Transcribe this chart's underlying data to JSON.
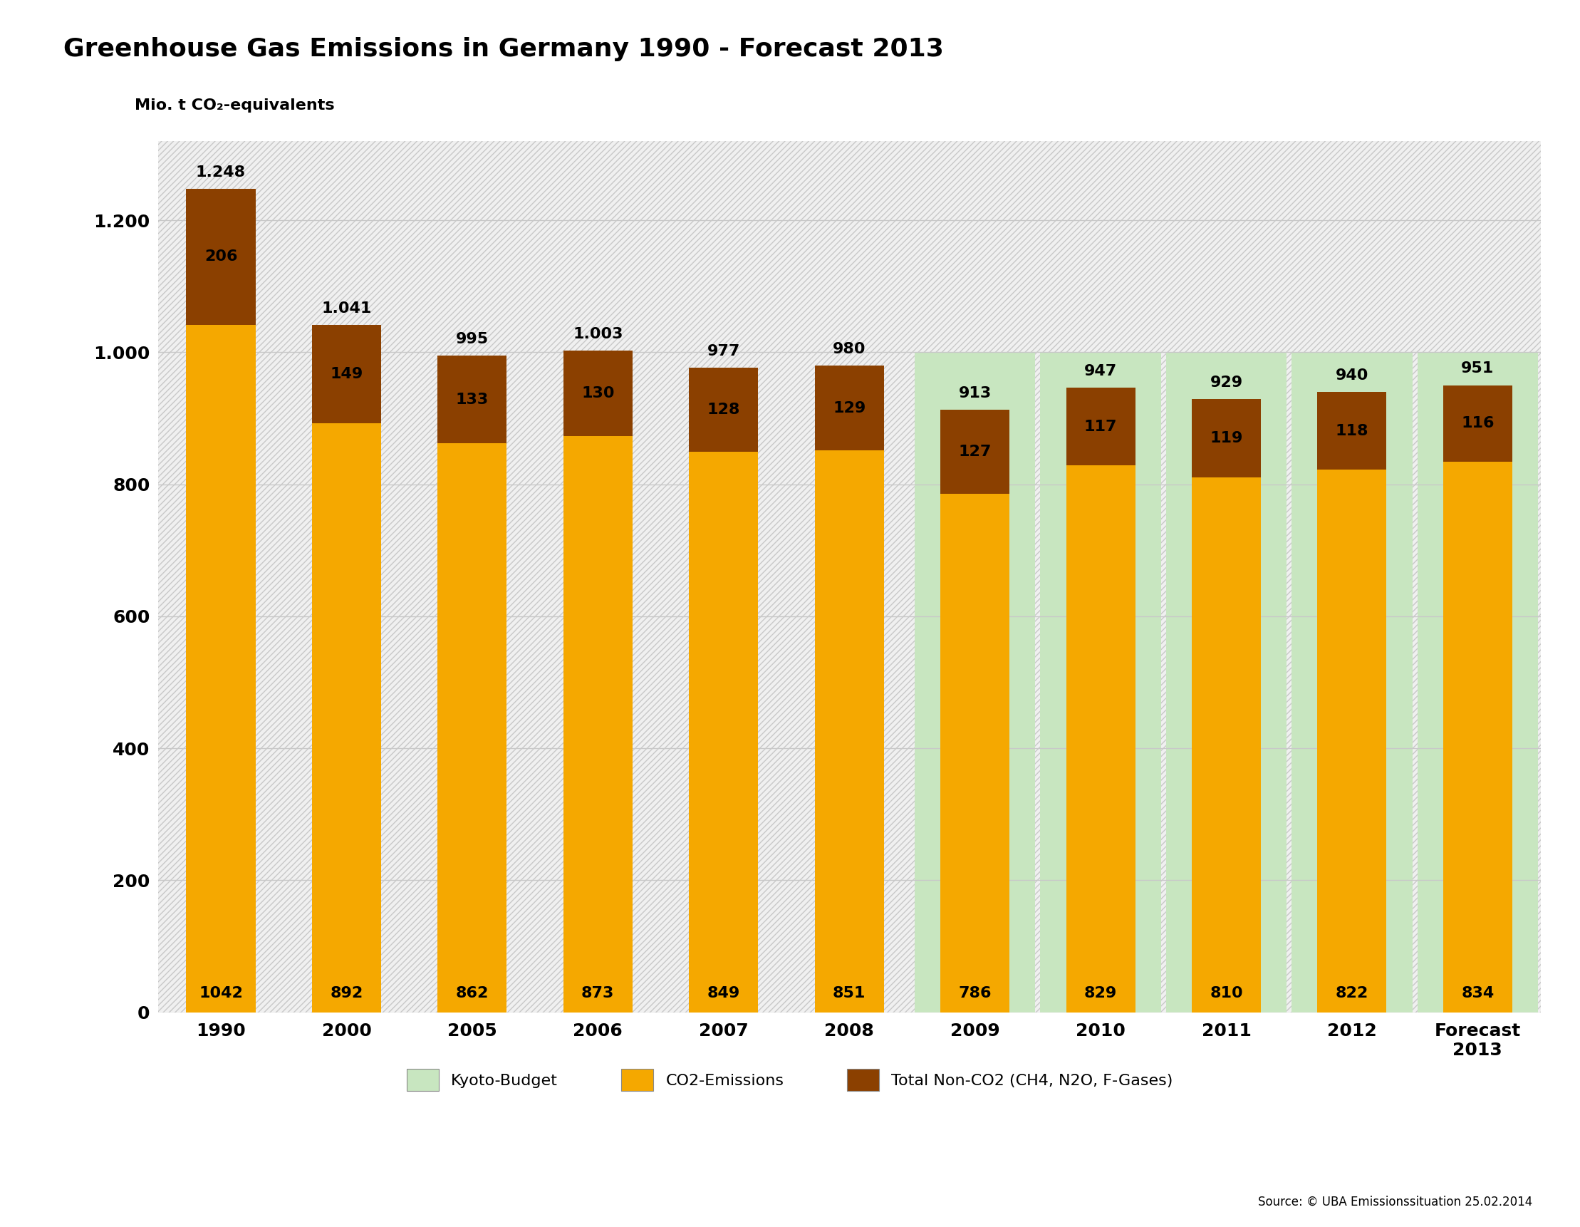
{
  "title": "Greenhouse Gas Emissions in Germany 1990 - Forecast 2013",
  "ylabel": "Mio. t CO₂-equivalents",
  "categories": [
    "1990",
    "2000",
    "2005",
    "2006",
    "2007",
    "2008",
    "2009",
    "2010",
    "2011",
    "2012",
    "Forecast\n2013"
  ],
  "co2_emissions": [
    1042,
    892,
    862,
    873,
    849,
    851,
    786,
    829,
    810,
    822,
    834
  ],
  "non_co2": [
    206,
    149,
    133,
    130,
    128,
    129,
    127,
    117,
    119,
    118,
    116
  ],
  "totals": [
    1248,
    1041,
    995,
    1003,
    977,
    980,
    913,
    947,
    929,
    940,
    951
  ],
  "total_labels": [
    "1.248",
    "1.041",
    "995",
    "1.003",
    "977",
    "980",
    "913",
    "947",
    "929",
    "940",
    "951"
  ],
  "kyoto_bar_indices": [
    6,
    7,
    8,
    9,
    10
  ],
  "kyoto_budget": 1000,
  "co2_color": "#F5A800",
  "non_co2_color": "#8B4000",
  "kyoto_color": "#C8E6C0",
  "background_color": "#FFFFFF",
  "chart_bg_color": "#F0F0F0",
  "hatch_color": "#C8C8C8",
  "grid_color": "#C8C8C8",
  "bar_width": 0.55,
  "ylim": [
    0,
    1320
  ],
  "yticks": [
    0,
    200,
    400,
    600,
    800,
    1000,
    1200
  ],
  "ytick_labels": [
    "0",
    "200",
    "400",
    "600",
    "800",
    "1.000",
    "1.200"
  ],
  "legend_items": [
    "Kyoto-Budget",
    "CO2-Emissions",
    "Total Non-CO2 (CH4, N2O, F-Gases)"
  ],
  "source_text": "Source: © UBA Emissionssituation 25.02.2014",
  "title_fontsize": 26,
  "label_fontsize": 16,
  "tick_fontsize": 18,
  "bar_label_fontsize": 16,
  "legend_fontsize": 16
}
